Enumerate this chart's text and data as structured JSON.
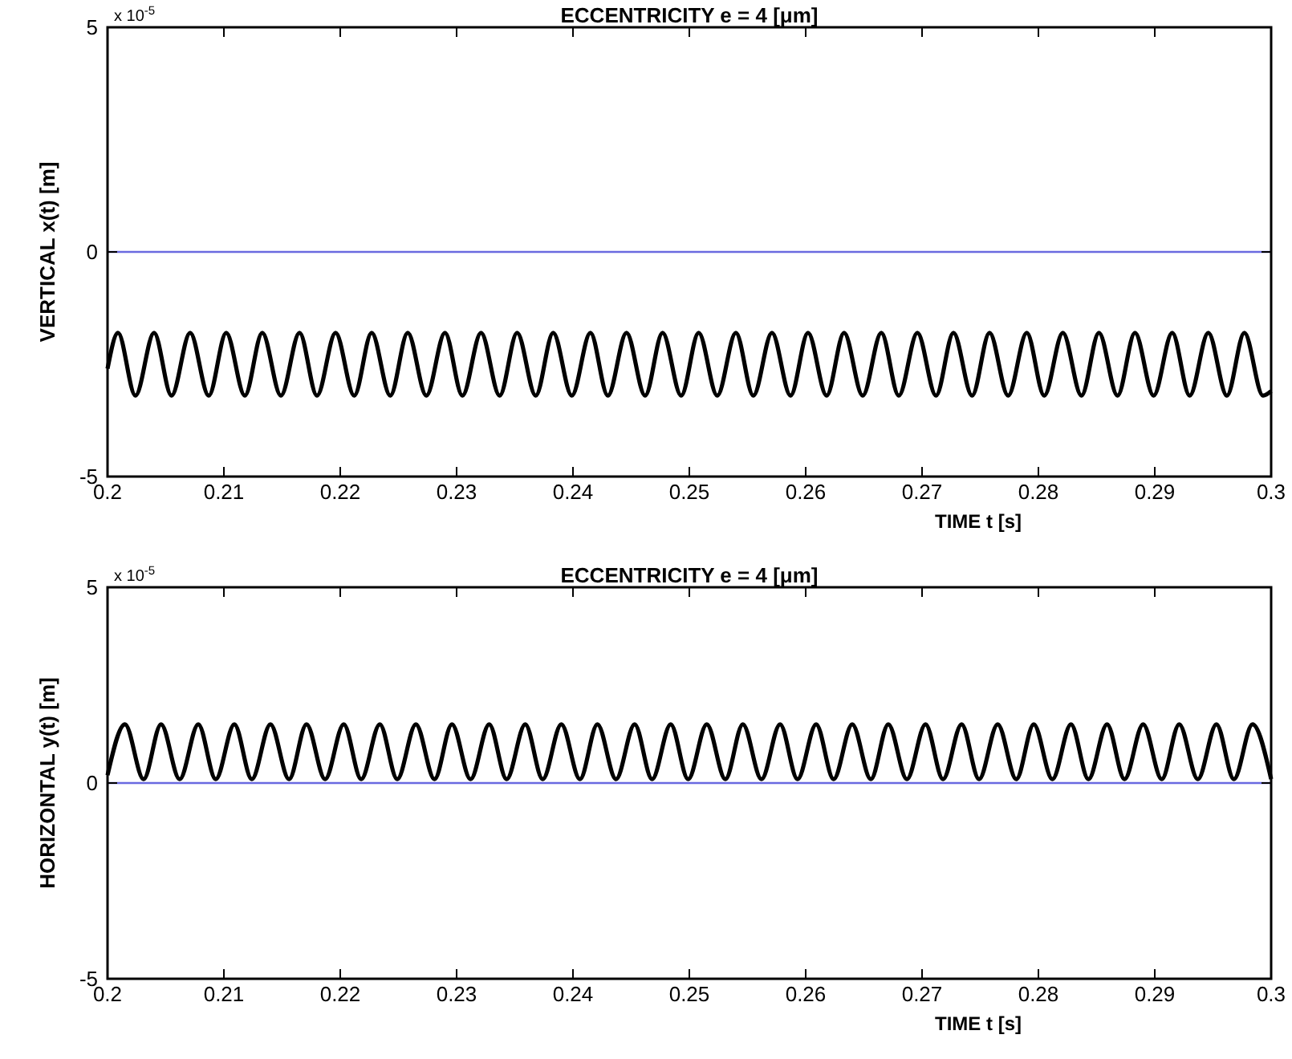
{
  "chart_data": [
    {
      "type": "line",
      "title": "ECCENTRICITY e = 4 [μm]",
      "xlabel": "TIME t [s]",
      "ylabel": "VERTICAL  x(t)  [m]",
      "annotations": [
        "x 10$^{-5}$"
      ],
      "xlim": [
        0.2,
        0.3
      ],
      "xticks": [
        0.2,
        0.21,
        0.22,
        0.23,
        0.24,
        0.25,
        0.26,
        0.27,
        0.28,
        0.29,
        0.3
      ],
      "ylim": [
        -5,
        5
      ],
      "yticks": [
        -5,
        0,
        5
      ],
      "marker": "none",
      "line_style": "solid",
      "ref_lines": [
        {
          "axis": "y",
          "value": 0,
          "color": "#6a6ae0"
        }
      ],
      "series": [
        {
          "color": "#000000",
          "x": [
            0.2,
            0.2009,
            0.2024,
            0.204,
            0.2055,
            0.2071,
            0.2087,
            0.2102,
            0.2118,
            0.2133,
            0.2149,
            0.2165,
            0.218,
            0.2196,
            0.2212,
            0.2227,
            0.2243,
            0.2258,
            0.2274,
            0.229,
            0.2305,
            0.2321,
            0.2337,
            0.2352,
            0.2368,
            0.2383,
            0.2399,
            0.2415,
            0.243,
            0.2446,
            0.2462,
            0.2477,
            0.2493,
            0.2508,
            0.2524,
            0.254,
            0.2555,
            0.2571,
            0.2587,
            0.2602,
            0.2618,
            0.2633,
            0.2649,
            0.2665,
            0.268,
            0.2696,
            0.2712,
            0.2727,
            0.2743,
            0.2758,
            0.2774,
            0.279,
            0.2805,
            0.2821,
            0.2837,
            0.2852,
            0.2868,
            0.2883,
            0.2899,
            0.2915,
            0.293,
            0.2946,
            0.2962,
            0.2977,
            0.2993,
            0.3
          ],
          "values": [
            -2.6,
            -1.8,
            -3.2,
            -1.8,
            -3.2,
            -1.8,
            -3.2,
            -1.8,
            -3.2,
            -1.8,
            -3.2,
            -1.8,
            -3.2,
            -1.8,
            -3.2,
            -1.8,
            -3.2,
            -1.8,
            -3.2,
            -1.8,
            -3.2,
            -1.8,
            -3.2,
            -1.8,
            -3.2,
            -1.8,
            -3.2,
            -1.8,
            -3.2,
            -1.8,
            -3.2,
            -1.8,
            -3.2,
            -1.8,
            -3.2,
            -1.8,
            -3.2,
            -1.8,
            -3.2,
            -1.8,
            -3.2,
            -1.8,
            -3.2,
            -1.8,
            -3.2,
            -1.8,
            -3.2,
            -1.8,
            -3.2,
            -1.8,
            -3.2,
            -1.8,
            -3.2,
            -1.8,
            -3.2,
            -1.8,
            -3.2,
            -1.8,
            -3.2,
            -1.8,
            -3.2,
            -1.8,
            -3.2,
            -1.8,
            -3.2,
            -3.1
          ]
        }
      ]
    },
    {
      "type": "line",
      "title": "ECCENTRICITY e = 4 [μm]",
      "xlabel": "TIME t [s]",
      "ylabel": "HORIZONTAL  y(t)  [m]",
      "annotations": [
        "x 10$^{-5}$"
      ],
      "xlim": [
        0.2,
        0.3
      ],
      "xticks": [
        0.2,
        0.21,
        0.22,
        0.23,
        0.24,
        0.25,
        0.26,
        0.27,
        0.28,
        0.29,
        0.3
      ],
      "ylim": [
        -5,
        5
      ],
      "yticks": [
        -5,
        0,
        5
      ],
      "marker": "none",
      "line_style": "solid",
      "ref_lines": [
        {
          "axis": "y",
          "value": 0,
          "color": "#6a6ae0"
        }
      ],
      "series": [
        {
          "color": "#000000",
          "x": [
            0.2,
            0.2015,
            0.2031,
            0.2046,
            0.2062,
            0.2078,
            0.2093,
            0.2109,
            0.2124,
            0.214,
            0.2156,
            0.2171,
            0.2187,
            0.2203,
            0.2218,
            0.2234,
            0.2249,
            0.2265,
            0.2281,
            0.2296,
            0.2312,
            0.2328,
            0.2343,
            0.2359,
            0.2374,
            0.239,
            0.2406,
            0.2421,
            0.2437,
            0.2453,
            0.2468,
            0.2484,
            0.2499,
            0.2515,
            0.2531,
            0.2546,
            0.2562,
            0.2578,
            0.2593,
            0.2609,
            0.2624,
            0.264,
            0.2656,
            0.2671,
            0.2687,
            0.2703,
            0.2718,
            0.2734,
            0.2749,
            0.2765,
            0.2781,
            0.2796,
            0.2812,
            0.2828,
            0.2843,
            0.2859,
            0.2874,
            0.289,
            0.2906,
            0.2921,
            0.2937,
            0.2953,
            0.2968,
            0.2984,
            0.3
          ],
          "values": [
            0.2,
            1.5,
            0.1,
            1.5,
            0.1,
            1.5,
            0.1,
            1.5,
            0.1,
            1.5,
            0.1,
            1.5,
            0.1,
            1.5,
            0.1,
            1.5,
            0.1,
            1.5,
            0.1,
            1.5,
            0.1,
            1.5,
            0.1,
            1.5,
            0.1,
            1.5,
            0.1,
            1.5,
            0.1,
            1.5,
            0.1,
            1.5,
            0.1,
            1.5,
            0.1,
            1.5,
            0.1,
            1.5,
            0.1,
            1.5,
            0.1,
            1.5,
            0.1,
            1.5,
            0.1,
            1.5,
            0.1,
            1.5,
            0.1,
            1.5,
            0.1,
            1.5,
            0.1,
            1.5,
            0.1,
            1.5,
            0.1,
            1.5,
            0.1,
            1.5,
            0.1,
            1.5,
            0.1,
            1.5,
            0.1
          ]
        }
      ]
    }
  ]
}
